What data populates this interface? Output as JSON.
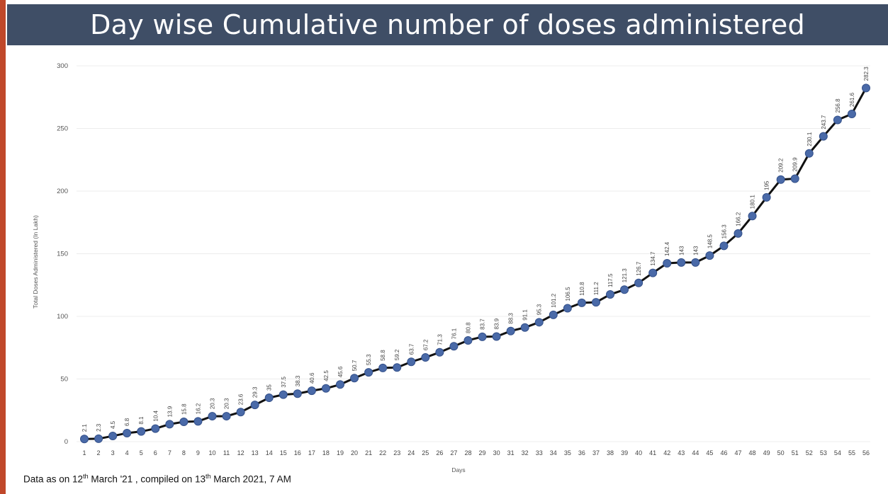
{
  "header": {
    "title": "Day wise Cumulative number of doses administered"
  },
  "footnote": {
    "prefix": "Data as on 12",
    "sup1": "th",
    "middle": " March '21 , compiled on 13",
    "sup2": "th",
    "suffix": " March 2021, 7 AM"
  },
  "colors": {
    "header_bg": "#3f4e66",
    "accent_bar": "#c0482a",
    "line": "#111111",
    "marker": "#4a6aa8",
    "grid": "#ececec"
  },
  "chart_data": {
    "type": "line",
    "title": "",
    "xlabel": "Days",
    "ylabel": "Total Doses Administered (In Lakh)",
    "ylim": [
      0,
      300
    ],
    "yticks": [
      0,
      50,
      100,
      150,
      200,
      250,
      300
    ],
    "grid": true,
    "categories": [
      1,
      2,
      3,
      4,
      5,
      6,
      7,
      8,
      9,
      10,
      11,
      12,
      13,
      14,
      15,
      16,
      17,
      18,
      19,
      20,
      21,
      22,
      23,
      24,
      25,
      26,
      27,
      28,
      29,
      30,
      31,
      32,
      33,
      34,
      35,
      36,
      37,
      38,
      39,
      40,
      41,
      42,
      43,
      44,
      45,
      46,
      47,
      48,
      49,
      50,
      51,
      52,
      53,
      54,
      55,
      56
    ],
    "values": [
      2.1,
      2.3,
      4.5,
      6.8,
      8.1,
      10.4,
      13.9,
      15.8,
      16.2,
      20.3,
      20.3,
      23.6,
      29.3,
      35,
      37.5,
      38.3,
      40.6,
      42.5,
      45.6,
      50.7,
      55.3,
      58.8,
      59.2,
      63.7,
      67.2,
      71.3,
      76.1,
      80.8,
      83.7,
      83.9,
      88.3,
      91.1,
      95.3,
      101.2,
      106.5,
      110.8,
      111.2,
      117.5,
      121.3,
      126.7,
      134.7,
      142.4,
      143,
      143,
      148.5,
      156.3,
      166.2,
      180.1,
      195,
      209.2,
      209.9,
      230.1,
      243.7,
      256.8,
      261.6,
      282.3
    ],
    "value_labels": [
      "2.1",
      "2.3",
      "4.5",
      "6.8",
      "8.1",
      "10.4",
      "13.9",
      "15.8",
      "16.2",
      "20.3",
      "20.3",
      "23.6",
      "29.3",
      "35",
      "37.5",
      "38.3",
      "40.6",
      "42.5",
      "45.6",
      "50.7",
      "55.3",
      "58.8",
      "59.2",
      "63.7",
      "67.2",
      "71.3",
      "76.1",
      "80.8",
      "83.7",
      "83.9",
      "88.3",
      "91.1",
      "95.3",
      "101.2",
      "106.5",
      "110.8",
      "111.2",
      "117.5",
      "121.3",
      "126.7",
      "134.7",
      "142.4",
      "143",
      "143",
      "148.5",
      "156.3",
      "166.2",
      "180.1",
      "195",
      "209.2",
      "209.9",
      "230.1",
      "243.7",
      "256.8",
      "261.6",
      "282.3"
    ]
  }
}
